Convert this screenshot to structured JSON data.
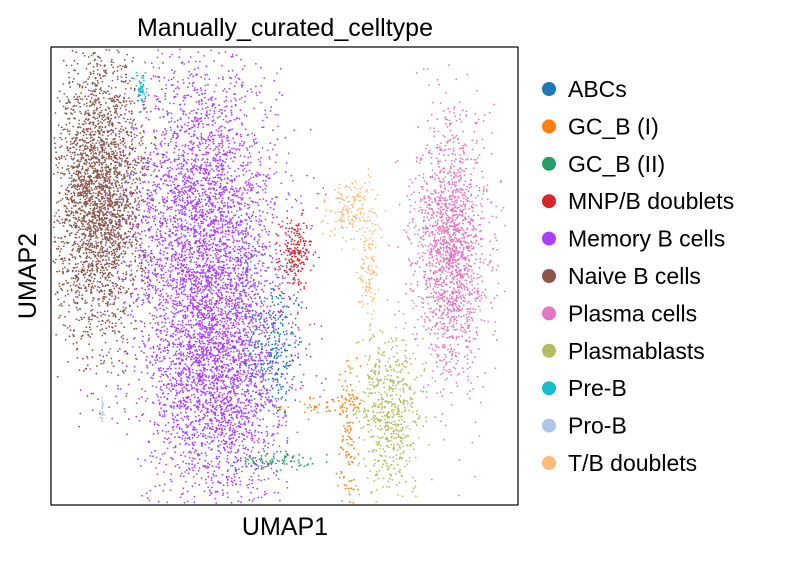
{
  "chart_data": {
    "type": "scatter",
    "title": "Manually_curated_celltype",
    "xlabel": "UMAP1",
    "ylabel": "UMAP2",
    "grid": false,
    "legend_position": "right",
    "series": [
      {
        "name": "ABCs",
        "color": "#1f77b4",
        "clusters": [
          {
            "x": 5.0,
            "y": 3.4,
            "sx": 0.35,
            "sy": 0.9,
            "n": 320
          },
          {
            "x": 4.4,
            "y": 5.0,
            "sx": 0.12,
            "sy": 1.2,
            "n": 50
          }
        ]
      },
      {
        "name": "GC_B (I)",
        "color": "#ff7f0e",
        "clusters": [
          {
            "x": 6.2,
            "y": 2.0,
            "sx": 0.5,
            "sy": 0.15,
            "n": 60
          },
          {
            "x": 6.7,
            "y": 1.0,
            "sx": 0.12,
            "sy": 1.0,
            "n": 110
          }
        ]
      },
      {
        "name": "GC_B (II)",
        "color": "#279e68",
        "clusters": [
          {
            "x": 5.0,
            "y": 0.6,
            "sx": 0.4,
            "sy": 0.12,
            "n": 90
          }
        ]
      },
      {
        "name": "MNP/B doublets",
        "color": "#d62728",
        "clusters": [
          {
            "x": 5.5,
            "y": 5.8,
            "sx": 0.18,
            "sy": 0.45,
            "n": 190
          }
        ]
      },
      {
        "name": "Memory B cells",
        "color": "#aa40fc",
        "clusters": [
          {
            "x": 3.4,
            "y": 6.6,
            "sx": 0.85,
            "sy": 2.0,
            "n": 3200
          },
          {
            "x": 3.7,
            "y": 2.8,
            "sx": 0.75,
            "sy": 1.7,
            "n": 2600
          }
        ]
      },
      {
        "name": "Naive B cells",
        "color": "#8c564b",
        "clusters": [
          {
            "x": 1.1,
            "y": 7.2,
            "sx": 0.5,
            "sy": 1.75,
            "n": 2800
          }
        ]
      },
      {
        "name": "Plasma cells",
        "color": "#e377c2",
        "clusters": [
          {
            "x": 9.0,
            "y": 5.9,
            "sx": 0.4,
            "sy": 1.55,
            "n": 1700
          }
        ]
      },
      {
        "name": "Plasmablasts",
        "color": "#b5bd61",
        "clusters": [
          {
            "x": 7.6,
            "y": 1.9,
            "sx": 0.35,
            "sy": 1.0,
            "n": 600
          }
        ]
      },
      {
        "name": "Pre-B",
        "color": "#17becf",
        "clusters": [
          {
            "x": 2.05,
            "y": 9.9,
            "sx": 0.05,
            "sy": 0.22,
            "n": 45
          }
        ]
      },
      {
        "name": "Pro-B",
        "color": "#aec7e8",
        "clusters": [
          {
            "x": 1.15,
            "y": 1.9,
            "sx": 0.03,
            "sy": 0.18,
            "n": 20
          }
        ]
      },
      {
        "name": "T/B doublets",
        "color": "#ffbb78",
        "clusters": [
          {
            "x": 6.8,
            "y": 6.9,
            "sx": 0.3,
            "sy": 0.4,
            "n": 170
          },
          {
            "x": 7.1,
            "y": 5.3,
            "sx": 0.12,
            "sy": 0.75,
            "n": 110
          }
        ]
      }
    ],
    "xlim": [
      0,
      10.5
    ],
    "ylim": [
      -0.5,
      11
    ]
  }
}
